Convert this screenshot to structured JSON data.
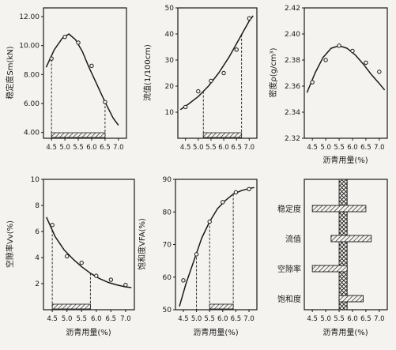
{
  "colors": {
    "ink": "#1a1a1a",
    "paper": "#f4f3ef"
  },
  "x_ticks": [
    "4.5",
    "5.0",
    "5.5",
    "6.0",
    "6.5",
    "7.0"
  ],
  "chart_data": [
    {
      "id": "stability",
      "type": "line",
      "ylabel": "稳定度Sm(kN)",
      "xlabel": "",
      "xlim": [
        4.2,
        7.3
      ],
      "ylim": [
        3.6,
        12.6
      ],
      "y_ticks": [
        "4.00",
        "6.00",
        "8.00",
        "10.00",
        "12.00"
      ],
      "y_tick_values": [
        4,
        6,
        8,
        10,
        12
      ],
      "points": {
        "x": [
          4.5,
          5.0,
          5.5,
          6.0,
          6.5
        ],
        "y": [
          9.1,
          10.6,
          10.2,
          8.6,
          6.1
        ]
      },
      "curve": {
        "x": [
          4.3,
          4.6,
          4.9,
          5.15,
          5.4,
          5.65,
          5.9,
          6.2,
          6.5,
          6.8,
          7.0
        ],
        "y": [
          8.5,
          9.7,
          10.5,
          10.8,
          10.4,
          9.6,
          8.5,
          7.3,
          6.1,
          5.0,
          4.5
        ]
      },
      "optimum_range": [
        4.5,
        6.5
      ],
      "guide_lines": [
        4.5,
        6.5
      ]
    },
    {
      "id": "flow",
      "type": "line",
      "ylabel": "流值(1/100cm)",
      "xlabel": "",
      "xlim": [
        4.2,
        7.3
      ],
      "ylim": [
        0,
        50
      ],
      "y_ticks": [
        "10",
        "20",
        "30",
        "40",
        "50"
      ],
      "y_tick_values": [
        10,
        20,
        30,
        40,
        50
      ],
      "points": {
        "x": [
          4.5,
          5.0,
          5.5,
          6.0,
          6.5,
          7.0
        ],
        "y": [
          12,
          18,
          22,
          25,
          34,
          46
        ]
      },
      "curve": {
        "x": [
          4.3,
          4.6,
          5.0,
          5.4,
          5.8,
          6.2,
          6.6,
          7.0,
          7.15
        ],
        "y": [
          11,
          13,
          16,
          20,
          25,
          31,
          38,
          45,
          47
        ]
      },
      "optimum_range": [
        5.2,
        6.7
      ],
      "guide_lines": [
        5.2,
        6.7
      ]
    },
    {
      "id": "density",
      "type": "line",
      "ylabel": "密度ρ(g/cm³)",
      "xlabel": "沥青用量(%)",
      "xlim": [
        4.2,
        7.3
      ],
      "ylim": [
        2.32,
        2.42
      ],
      "y_ticks": [
        "2.32",
        "2.34",
        "2.36",
        "2.38",
        "2.40",
        "2.42"
      ],
      "y_tick_values": [
        2.32,
        2.34,
        2.36,
        2.38,
        2.4,
        2.42
      ],
      "points": {
        "x": [
          4.5,
          5.0,
          5.5,
          6.0,
          6.5,
          7.0
        ],
        "y": [
          2.363,
          2.38,
          2.391,
          2.387,
          2.378,
          2.371
        ]
      },
      "curve": {
        "x": [
          4.3,
          4.6,
          4.9,
          5.2,
          5.5,
          5.8,
          6.1,
          6.4,
          6.7,
          7.0,
          7.2
        ],
        "y": [
          2.355,
          2.37,
          2.382,
          2.389,
          2.391,
          2.389,
          2.384,
          2.377,
          2.369,
          2.362,
          2.357
        ]
      }
    },
    {
      "id": "voids",
      "type": "line",
      "ylabel": "空隙率Vv(%)",
      "xlabel": "沥青用量(%)",
      "xlim": [
        4.2,
        7.3
      ],
      "ylim": [
        0,
        10
      ],
      "y_ticks": [
        "2",
        "4",
        "6",
        "8",
        "10"
      ],
      "y_tick_values": [
        2,
        4,
        6,
        8,
        10
      ],
      "points": {
        "x": [
          4.5,
          5.0,
          5.5,
          6.0,
          6.5,
          7.0
        ],
        "y": [
          6.5,
          4.1,
          3.6,
          2.6,
          2.3,
          1.9
        ]
      },
      "curve": {
        "x": [
          4.3,
          4.6,
          4.9,
          5.2,
          5.5,
          5.8,
          6.1,
          6.4,
          6.7,
          7.0,
          7.2
        ],
        "y": [
          7.1,
          5.6,
          4.6,
          3.9,
          3.3,
          2.8,
          2.4,
          2.1,
          1.9,
          1.75,
          1.7
        ]
      },
      "optimum_range": [
        4.5,
        5.8
      ],
      "guide_lines": [
        4.5,
        5.8
      ]
    },
    {
      "id": "vfa",
      "type": "line",
      "ylabel": "饱和度VFA(%)",
      "xlabel": "沥青用量(%)",
      "xlim": [
        4.2,
        7.3
      ],
      "ylim": [
        50,
        90
      ],
      "y_ticks": [
        "50",
        "60",
        "70",
        "80",
        "90"
      ],
      "y_tick_values": [
        50,
        60,
        70,
        80,
        90
      ],
      "points": {
        "x": [
          4.5,
          5.0,
          5.5,
          6.0,
          6.5,
          7.0
        ],
        "y": [
          59,
          67,
          77,
          83,
          86,
          87
        ]
      },
      "curve": {
        "x": [
          4.35,
          4.6,
          4.9,
          5.2,
          5.5,
          5.8,
          6.1,
          6.4,
          6.7,
          7.0,
          7.2
        ],
        "y": [
          51,
          58,
          65,
          72,
          77,
          81,
          83.5,
          85.5,
          86.5,
          87.2,
          87.5
        ]
      },
      "optimum_range": [
        5.5,
        6.4
      ],
      "guide_lines": [
        5.0,
        5.5,
        6.4
      ]
    },
    {
      "id": "summary",
      "type": "bar",
      "xlabel": "沥青用量(%)",
      "xlim": [
        4.2,
        7.3
      ],
      "categories": [
        "稳定度",
        "流值",
        "空隙率",
        "饱和度"
      ],
      "ranges": [
        [
          4.5,
          6.5
        ],
        [
          5.2,
          6.7
        ],
        [
          4.5,
          5.8
        ],
        [
          5.5,
          6.4
        ]
      ],
      "common_range": [
        5.5,
        5.8
      ]
    }
  ]
}
